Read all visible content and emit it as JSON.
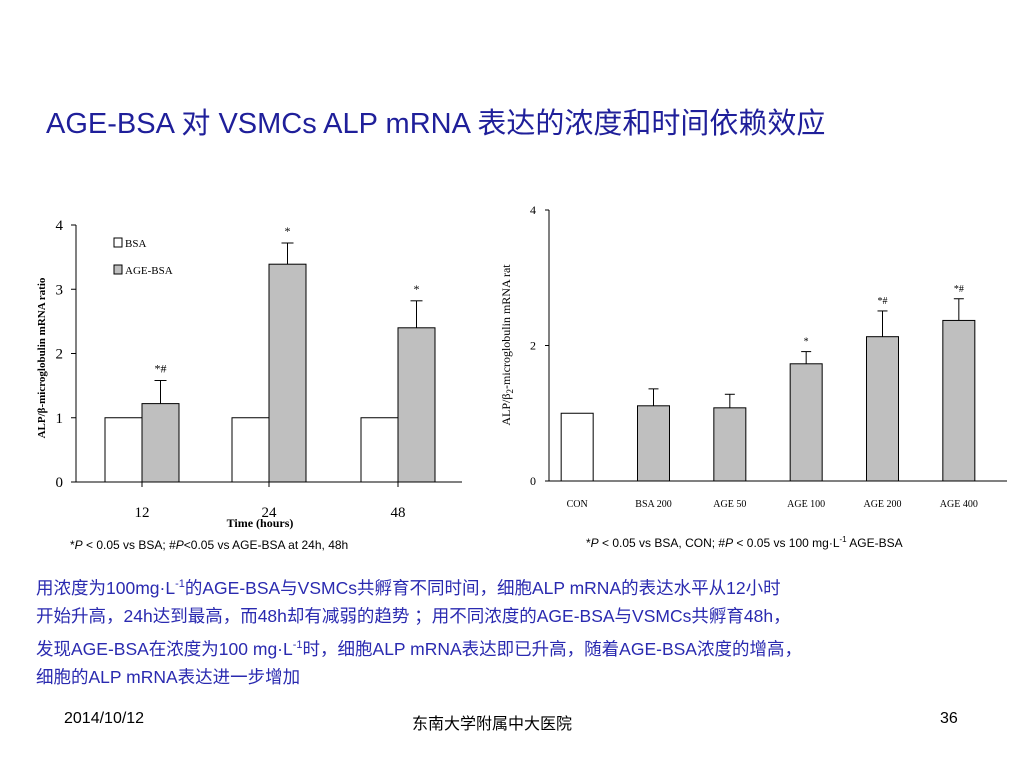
{
  "slide": {
    "title": "AGE-BSA 对 VSMCs ALP mRNA 表达的浓度和时间依赖效应",
    "summary": {
      "l1a": "用浓度为100mg·L",
      "l1b": "-1",
      "l1c": "的AGE-BSA与VSMCs共孵育不同时间，细胞ALP mRNA的表达水平从12小时",
      "l2": "开始升高，24h达到最高，而48h却有减弱的趋势 ；用不同浓度的AGE-BSA与VSMCs共孵育48h，",
      "l3a": "发现AGE-BSA在浓度为100 mg·L",
      "l3b": "-1",
      "l3c": "时，细胞ALP mRNA表达即已升高，随着AGE-BSA浓度的增高，",
      "l4": "细胞的ALP mRNA表达进一步增加"
    },
    "footer": {
      "date": "2014/10/12",
      "institution": "东南大学附属中大医院",
      "page": "36"
    }
  },
  "captions": {
    "a": {
      "star": "*",
      "p1": "P",
      "t1": " < 0.05 vs BSA; #",
      "p2": "P",
      "t2": "<0.05 vs AGE-BSA at 24h, 48h"
    },
    "b": {
      "star": "*",
      "p1": "P",
      "t1": " < 0.05 vs BSA, CON; #",
      "p2": "P",
      "t2": " < 0.05 vs 100 mg·L",
      "sup": "-1",
      "t3": " AGE-BSA"
    }
  },
  "chart_data": [
    {
      "type": "bar",
      "categories": [
        "12",
        "24",
        "48"
      ],
      "xlabel": "Time (hours)",
      "ylabel": "ALP/β-microglobulin mRNA ratio",
      "ylim": [
        0,
        4
      ],
      "yticks": [
        "0",
        "1",
        "2",
        "3",
        "4"
      ],
      "legend_position": "top-left",
      "series": [
        {
          "name": "BSA",
          "color": "#ffffff",
          "values": [
            1.0,
            1.0,
            1.0
          ],
          "errors": [
            0,
            0,
            0
          ],
          "labels": [
            "",
            "",
            ""
          ]
        },
        {
          "name": "AGE-BSA",
          "color": "#bfbfbf",
          "values": [
            1.22,
            3.39,
            2.4
          ],
          "errors": [
            0.36,
            0.33,
            0.42
          ],
          "labels": [
            "*#",
            "*",
            "*"
          ]
        }
      ]
    },
    {
      "type": "bar",
      "categories": [
        "CON",
        "BSA 200",
        "AGE 50",
        "AGE 100",
        "AGE 200",
        "AGE 400"
      ],
      "ylabel_pre": "ALP/β",
      "ylabel_sub": "2",
      "ylabel_post": "-microglobulin mRNA rat",
      "ylim": [
        0,
        4
      ],
      "yticks": [
        "0",
        "2",
        "4"
      ],
      "values": [
        1.0,
        1.11,
        1.08,
        1.73,
        2.13,
        2.37
      ],
      "errors": [
        0,
        0.25,
        0.2,
        0.18,
        0.38,
        0.32
      ],
      "colors": [
        "#ffffff",
        "#bfbfbf",
        "#bfbfbf",
        "#bfbfbf",
        "#bfbfbf",
        "#bfbfbf"
      ],
      "labels": [
        "",
        "",
        "",
        "*",
        "*#",
        "*#"
      ]
    }
  ]
}
